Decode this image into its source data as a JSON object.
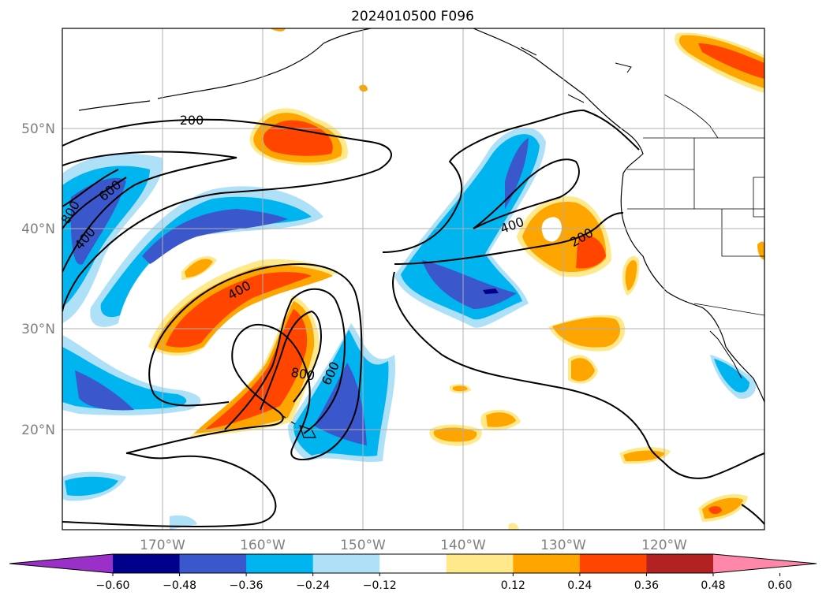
{
  "title": "2024010500 F096",
  "map": {
    "lon_ticks": [
      "170°W",
      "160°W",
      "150°W",
      "140°W",
      "130°W",
      "120°W"
    ],
    "lat_ticks": [
      "50°N",
      "40°N",
      "30°N",
      "20°N"
    ],
    "grid": true
  },
  "contours": {
    "color": "#000000",
    "labels": [
      "200",
      "600",
      "800",
      "400",
      "400",
      "800",
      "600",
      "400",
      "200"
    ]
  },
  "colorbar": {
    "tick_labels": [
      "−0.60",
      "−0.48",
      "−0.36",
      "−0.24",
      "−0.12",
      "0.12",
      "0.24",
      "0.36",
      "0.48",
      "0.60"
    ],
    "colors": [
      "#9b30c8",
      "#00008b",
      "#3a58cc",
      "#00b4f0",
      "#aee0f8",
      "#ffffff",
      "#ffe98a",
      "#ffa500",
      "#ff4500",
      "#b22222",
      "#ff88aa"
    ]
  },
  "fill_colors": {
    "neg_light": "#aee0f8",
    "neg_mid": "#00b4f0",
    "neg_strong": "#3a58cc",
    "neg_max": "#00008b",
    "pos_light": "#ffe98a",
    "pos_mid": "#ffa500",
    "pos_strong": "#ff4500",
    "pos_max": "#b22222"
  }
}
